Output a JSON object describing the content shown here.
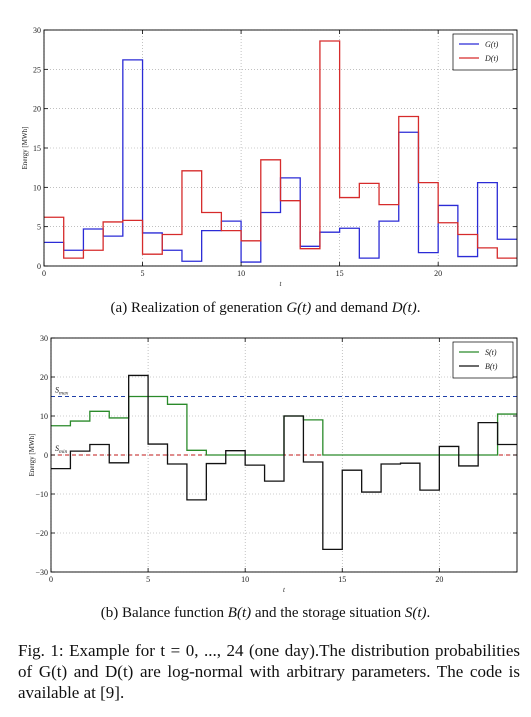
{
  "chart_data": [
    {
      "type": "line",
      "step": true,
      "xlabel": "t",
      "ylabel": "Energy [MWh]",
      "xlim": [
        0,
        24
      ],
      "ylim": [
        0,
        30
      ],
      "xticks": [
        0,
        5,
        10,
        15,
        20
      ],
      "yticks": [
        0,
        5,
        10,
        15,
        20,
        25,
        30
      ],
      "grid": true,
      "legend": "top-right",
      "series": [
        {
          "name": "G(t)",
          "color": "#2b2bd6",
          "values": [
            3,
            2,
            4.7,
            3.8,
            26.2,
            4.2,
            2,
            0.6,
            4.5,
            5.7,
            0.5,
            6.8,
            11.2,
            2.5,
            4.3,
            4.8,
            1,
            5.7,
            17,
            1.7,
            7.7,
            1.2,
            10.6,
            3.4
          ]
        },
        {
          "name": "D(t)",
          "color": "#d62b2b",
          "values": [
            6.2,
            1,
            2,
            5.6,
            5.8,
            1.5,
            4,
            12.1,
            6.8,
            4.5,
            3.2,
            13.5,
            8.3,
            2.2,
            28.6,
            8.7,
            10.5,
            7.8,
            19,
            10.6,
            5.5,
            4,
            2.3,
            1
          ]
        }
      ]
    },
    {
      "type": "line",
      "step": true,
      "xlabel": "t",
      "ylabel": "Energy [MWh]",
      "xlim": [
        0,
        24
      ],
      "ylim": [
        -30,
        30
      ],
      "xticks": [
        0,
        5,
        10,
        15,
        20
      ],
      "yticks": [
        -30,
        -20,
        -10,
        0,
        10,
        20,
        30
      ],
      "grid": true,
      "legend": "top-right",
      "annotations": [
        {
          "label": "S_max",
          "y": 15
        },
        {
          "label": "S_min",
          "y": 0
        }
      ],
      "series": [
        {
          "name": "S(t)",
          "color": "#2a8a2a",
          "values": [
            7.5,
            8.7,
            11.2,
            9.5,
            15,
            15,
            13,
            1.2,
            0,
            0,
            0,
            0,
            10,
            9,
            0,
            0,
            0,
            0,
            0,
            0,
            0,
            0,
            0,
            10.5
          ]
        },
        {
          "name": "B(t)",
          "color": "#111111",
          "values": [
            -3.5,
            1,
            2.7,
            -2,
            20.4,
            2.8,
            -2.3,
            -11.5,
            -2.2,
            1.1,
            -2.6,
            -6.7,
            10,
            -1.8,
            -24.2,
            -3.9,
            -9.5,
            -2.3,
            -2.1,
            -9,
            2.2,
            -2.8,
            8.3,
            2.7
          ]
        }
      ]
    }
  ],
  "captions": {
    "a_prefix": "(a) Realization of generation ",
    "a_G": "G(t)",
    "a_mid": " and demand ",
    "a_D": "D(t)",
    "a_end": ".",
    "b_prefix": "(b) Balance function ",
    "b_B": "B(t)",
    "b_mid": " and the storage situation ",
    "b_S": "S(t)",
    "b_end": "."
  },
  "figure_caption": {
    "text": "Fig. 1: Example for t = 0, ..., 24 (one day).The distribution probabilities of G(t) and D(t) are log-normal with arbitrary parameters. The code is available at [9]."
  }
}
